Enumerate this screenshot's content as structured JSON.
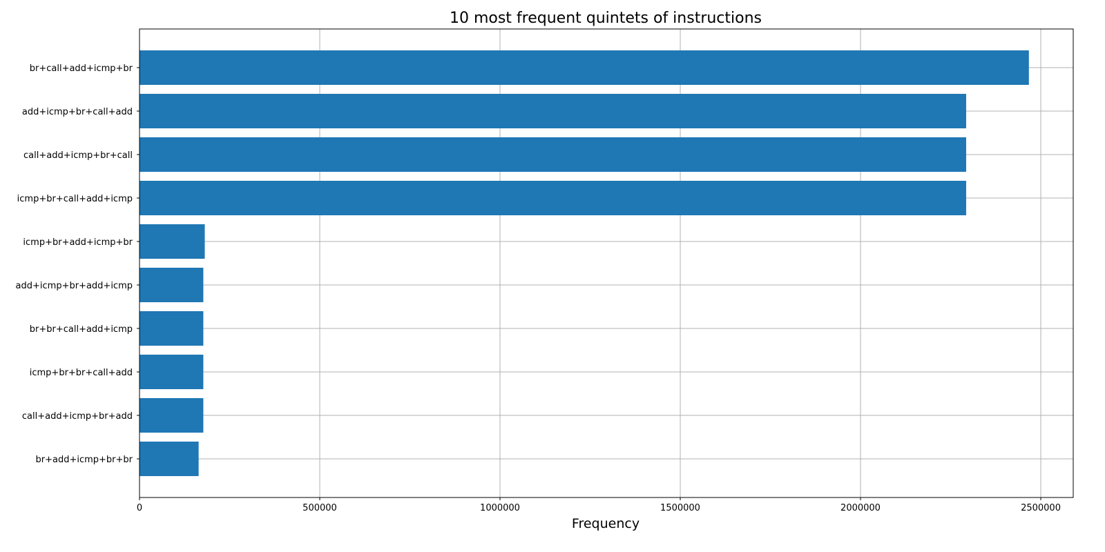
{
  "chart_data": {
    "type": "bar",
    "orientation": "horizontal",
    "title": "10 most frequent quintets of instructions",
    "xlabel": "Frequency",
    "ylabel": "",
    "xlim": [
      0,
      2590000
    ],
    "xticks": [
      0,
      500000,
      1000000,
      1500000,
      2000000,
      2500000
    ],
    "grid": true,
    "categories": [
      "br+call+add+icmp+br",
      "add+icmp+br+call+add",
      "call+add+icmp+br+call",
      "icmp+br+call+add+icmp",
      "icmp+br+add+icmp+br",
      "add+icmp+br+add+icmp",
      "br+br+call+add+icmp",
      "icmp+br+br+call+add",
      "call+add+icmp+br+add",
      "br+add+icmp+br+br"
    ],
    "values": [
      2467000,
      2293000,
      2293000,
      2293000,
      181000,
      177000,
      177000,
      177000,
      177000,
      164000
    ],
    "color": "#1f77b4"
  }
}
